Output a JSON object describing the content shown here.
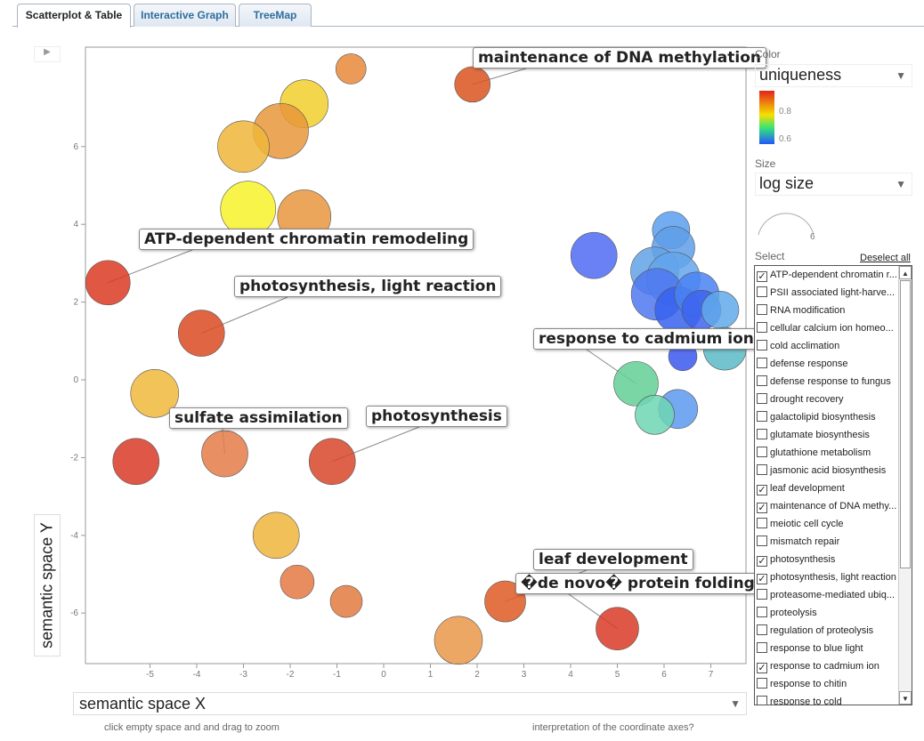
{
  "tabs": [
    {
      "label": "Scatterplot & Table",
      "active": true
    },
    {
      "label": "Interactive Graph",
      "active": false
    },
    {
      "label": "TreeMap",
      "active": false
    }
  ],
  "controls": {
    "color_label": "Color",
    "color_value": "uniqueness",
    "legend_ticks": [
      "0.8",
      "0.6"
    ],
    "size_label": "Size",
    "size_value": "log size",
    "size_tick": "6",
    "select_label": "Select",
    "deselect_all": "Deselect all",
    "x_axis_select": "semantic space X",
    "hint_zoom": "click empty space and and drag to zoom",
    "hint_axes": "interpretation of the coordinate axes?"
  },
  "select_list": [
    {
      "label": "ATP-dependent chromatin r...",
      "checked": true
    },
    {
      "label": "PSII associated light-harve...",
      "checked": false
    },
    {
      "label": "RNA modification",
      "checked": false
    },
    {
      "label": "cellular calcium ion homeo...",
      "checked": false
    },
    {
      "label": "cold acclimation",
      "checked": false
    },
    {
      "label": "defense response",
      "checked": false
    },
    {
      "label": "defense response to fungus",
      "checked": false
    },
    {
      "label": "drought recovery",
      "checked": false
    },
    {
      "label": "galactolipid biosynthesis",
      "checked": false
    },
    {
      "label": "glutamate biosynthesis",
      "checked": false
    },
    {
      "label": "glutathione metabolism",
      "checked": false
    },
    {
      "label": "jasmonic acid biosynthesis",
      "checked": false
    },
    {
      "label": "leaf development",
      "checked": true
    },
    {
      "label": "maintenance of DNA methy...",
      "checked": true
    },
    {
      "label": "meiotic cell cycle",
      "checked": false
    },
    {
      "label": "mismatch repair",
      "checked": false
    },
    {
      "label": "photosynthesis",
      "checked": true
    },
    {
      "label": "photosynthesis, light reaction",
      "checked": true
    },
    {
      "label": "proteasome-mediated ubiq...",
      "checked": false
    },
    {
      "label": "proteolysis",
      "checked": false
    },
    {
      "label": "regulation of proteolysis",
      "checked": false
    },
    {
      "label": "response to blue light",
      "checked": false
    },
    {
      "label": "response to cadmium ion",
      "checked": true
    },
    {
      "label": "response to chitin",
      "checked": false
    },
    {
      "label": "response to cold",
      "checked": false
    }
  ],
  "chart_data": {
    "type": "scatter",
    "xlabel": "semantic space X",
    "ylabel": "semantic space Y",
    "xlim": [
      -6.8,
      7.8
    ],
    "ylim": [
      -7.4,
      8.5
    ],
    "xticks": [
      "-5",
      "-4",
      "-3",
      "-2",
      "-1",
      "0",
      "1",
      "2",
      "3",
      "4",
      "5",
      "6",
      "7"
    ],
    "yticks": [
      "6",
      "4",
      "2",
      "0",
      "-2",
      "-4",
      "-6"
    ],
    "color_encoding": "uniqueness",
    "size_encoding": "log size",
    "points": [
      {
        "x": -0.7,
        "y": 8.0,
        "r": 17,
        "color": "#e8893a"
      },
      {
        "x": 1.9,
        "y": 7.6,
        "r": 20,
        "color": "#d9531e"
      },
      {
        "x": -1.7,
        "y": 7.1,
        "r": 27,
        "color": "#f2cf2e"
      },
      {
        "x": -2.2,
        "y": 6.4,
        "r": 31,
        "color": "#e8983a"
      },
      {
        "x": -3.0,
        "y": 6.0,
        "r": 29,
        "color": "#efb63a"
      },
      {
        "x": -2.9,
        "y": 4.4,
        "r": 31,
        "color": "#f7f22a"
      },
      {
        "x": -1.7,
        "y": 4.2,
        "r": 30,
        "color": "#e9963e"
      },
      {
        "x": -5.9,
        "y": 2.5,
        "r": 25,
        "color": "#da3a22"
      },
      {
        "x": -3.9,
        "y": 1.2,
        "r": 26,
        "color": "#d94a22"
      },
      {
        "x": -4.9,
        "y": -0.35,
        "r": 27,
        "color": "#f0b93b"
      },
      {
        "x": -5.3,
        "y": -2.1,
        "r": 26,
        "color": "#d93a26"
      },
      {
        "x": -3.4,
        "y": -1.9,
        "r": 26,
        "color": "#e47b48"
      },
      {
        "x": -1.1,
        "y": -2.1,
        "r": 26,
        "color": "#d8472a"
      },
      {
        "x": -2.3,
        "y": -4.0,
        "r": 26,
        "color": "#efb53c"
      },
      {
        "x": -1.85,
        "y": -5.2,
        "r": 19,
        "color": "#e37944"
      },
      {
        "x": -0.8,
        "y": -5.7,
        "r": 18,
        "color": "#e37b40"
      },
      {
        "x": 1.6,
        "y": -6.7,
        "r": 27,
        "color": "#e89848"
      },
      {
        "x": 2.6,
        "y": -5.7,
        "r": 23,
        "color": "#de5a24"
      },
      {
        "x": 5.0,
        "y": -6.4,
        "r": 24,
        "color": "#d93a26"
      },
      {
        "x": 4.5,
        "y": 3.2,
        "r": 26,
        "color": "#4f6bf2"
      },
      {
        "x": 6.15,
        "y": 3.85,
        "r": 21,
        "color": "#5a9fee"
      },
      {
        "x": 6.2,
        "y": 3.4,
        "r": 24,
        "color": "#5f9ee9"
      },
      {
        "x": 5.8,
        "y": 2.8,
        "r": 27,
        "color": "#63a2e6"
      },
      {
        "x": 6.2,
        "y": 2.6,
        "r": 30,
        "color": "#63a6ec"
      },
      {
        "x": 5.85,
        "y": 2.2,
        "r": 29,
        "color": "#4f78f1"
      },
      {
        "x": 6.3,
        "y": 1.8,
        "r": 26,
        "color": "#3762ee"
      },
      {
        "x": 6.7,
        "y": 2.2,
        "r": 25,
        "color": "#4a82f2"
      },
      {
        "x": 6.8,
        "y": 1.8,
        "r": 22,
        "color": "#3d64f0"
      },
      {
        "x": 7.2,
        "y": 1.8,
        "r": 21,
        "color": "#62a9ea"
      },
      {
        "x": 7.3,
        "y": 0.8,
        "r": 24,
        "color": "#5bbac6"
      },
      {
        "x": 6.4,
        "y": 0.6,
        "r": 16,
        "color": "#3b58ee"
      },
      {
        "x": 5.4,
        "y": -0.1,
        "r": 25,
        "color": "#63cf94"
      },
      {
        "x": 6.3,
        "y": -0.75,
        "r": 22,
        "color": "#5c99ee"
      },
      {
        "x": 5.8,
        "y": -0.9,
        "r": 22,
        "color": "#6fd6b4"
      }
    ],
    "annotations": [
      {
        "text": "maintenance of DNA methylation",
        "point": 1
      },
      {
        "text": "ATP-dependent chromatin remodeling",
        "point": 7
      },
      {
        "text": "photosynthesis, light reaction",
        "point": 8
      },
      {
        "text": "response to cadmium ion",
        "point": 31
      },
      {
        "text": "sulfate assimilation",
        "point": 11
      },
      {
        "text": "photosynthesis",
        "point": 12
      },
      {
        "text": "leaf development",
        "point": 17
      },
      {
        "text": "�de novo� protein folding",
        "point": 18
      }
    ]
  }
}
